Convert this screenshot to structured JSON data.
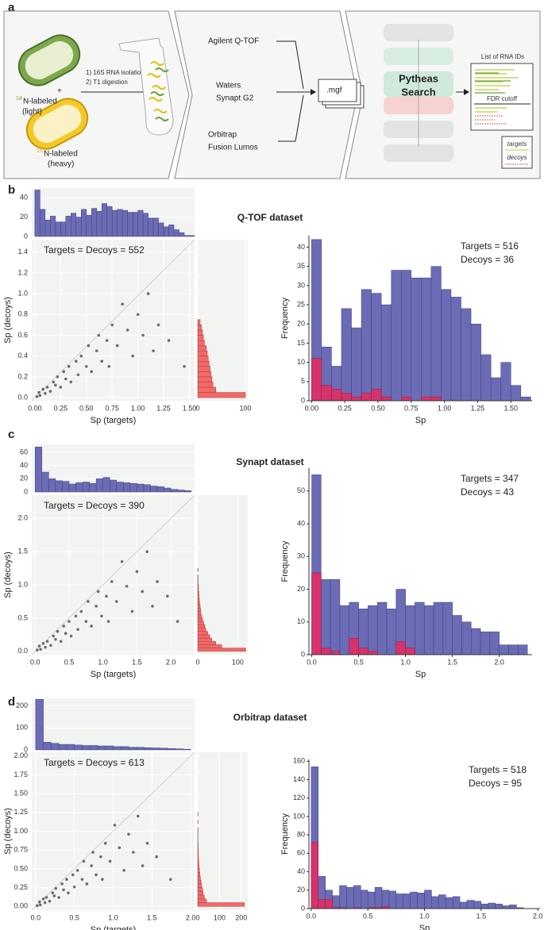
{
  "workflow": {
    "label": "a",
    "step1": "1) 16S RNA isolation",
    "step2": "2) T1 digestion",
    "plus": "+",
    "light_isotope": "14",
    "light_label": "N-labeled",
    "light_state": "(light)",
    "heavy_isotope": "15",
    "heavy_label": "N-labeled",
    "heavy_state": "(heavy)",
    "instruments": [
      "Agilent Q-TOF",
      "Waters",
      "Synapt G2",
      "Orbitrap",
      "Fusion Lumos"
    ],
    "file": ".mgf",
    "search": [
      "Pytheas",
      "Search"
    ],
    "output_title": "List of RNA IDs",
    "cutoff": "FDR cutoff",
    "legend": [
      "targets",
      "decoys"
    ]
  },
  "chart_data": [
    {
      "type": "histogram",
      "background": "#f2f4f2",
      "grid": true,
      "color": "#6b6cb5",
      "xlim": [
        -0.03,
        1.55
      ],
      "ylim": [
        0,
        50
      ],
      "yticks": [
        0,
        20,
        40
      ],
      "bins": [
        0,
        0.05,
        0.1,
        0.15,
        0.2,
        0.25,
        0.3,
        0.35,
        0.4,
        0.45,
        0.5,
        0.55,
        0.6,
        0.65,
        0.7,
        0.75,
        0.8,
        0.85,
        0.9,
        0.95,
        1,
        1.05,
        1.1,
        1.15,
        1.2,
        1.25,
        1.3,
        1.35,
        1.4,
        1.45,
        1.5,
        1.55
      ],
      "values": [
        48,
        28,
        17,
        21,
        15,
        15,
        21,
        24,
        20,
        28,
        22,
        29,
        26,
        34,
        31,
        27,
        28,
        27,
        25,
        25,
        27,
        24,
        19,
        19,
        14,
        10,
        12,
        7,
        4,
        1,
        1
      ]
    },
    {
      "type": "scatter",
      "background": "#f2f4f2",
      "grid": true,
      "color": "#555555",
      "annotation": "Targets = Decoys = 552",
      "x_label": "Sp (targets)",
      "y_label": "Sp (decoys)",
      "xlim": [
        -0.03,
        1.55
      ],
      "ylim": [
        -0.03,
        1.52
      ],
      "xticks": [
        {
          "value": 0,
          "label": "0.00"
        },
        0.25,
        {
          "value": 0.5,
          "label": "0.50"
        },
        0.75,
        {
          "value": 1,
          "label": "1.00"
        },
        1.25,
        {
          "value": 1.5,
          "label": "1.50"
        }
      ],
      "yticks": [
        {
          "value": 0,
          "label": "0.0"
        },
        0.2,
        0.4,
        0.6,
        0.8,
        {
          "value": 1,
          "label": "1.0"
        },
        1.2,
        1.4
      ],
      "x": [
        0.02,
        0.04,
        0.05,
        0.08,
        0.1,
        0.12,
        0.15,
        0.18,
        0.2,
        0.22,
        0.25,
        0.28,
        0.3,
        0.33,
        0.35,
        0.4,
        0.42,
        0.45,
        0.5,
        0.52,
        0.55,
        0.6,
        0.62,
        0.65,
        0.7,
        0.72,
        0.75,
        0.8,
        0.85,
        0.9,
        0.95,
        1.0,
        1.05,
        1.1,
        1.15,
        1.2,
        1.3,
        1.45
      ],
      "values": [
        0.01,
        0.05,
        0.02,
        0.08,
        0.04,
        0.1,
        0.06,
        0.15,
        0.12,
        0.2,
        0.1,
        0.25,
        0.18,
        0.3,
        0.15,
        0.35,
        0.22,
        0.4,
        0.3,
        0.5,
        0.25,
        0.45,
        0.6,
        0.35,
        0.55,
        0.3,
        0.7,
        0.5,
        0.9,
        0.65,
        0.4,
        0.8,
        0.6,
        1.0,
        0.45,
        0.7,
        0.55,
        0.3
      ]
    },
    {
      "type": "histogram",
      "orientation": "horizontal",
      "background": "#f2f4f2",
      "grid": true,
      "color": "#f06a6a",
      "xlim": [
        0,
        105
      ],
      "ylim": [
        -0.03,
        1.52
      ],
      "xticks": [
        0,
        100
      ],
      "bins": [
        0,
        0.05,
        0.1,
        0.15,
        0.2,
        0.25,
        0.3,
        0.35,
        0.4,
        0.45,
        0.5,
        0.55,
        0.6,
        0.65,
        0.7,
        0.75
      ],
      "values": [
        100,
        38,
        32,
        30,
        28,
        26,
        24,
        22,
        20,
        18,
        14,
        12,
        10,
        8,
        5
      ]
    },
    {
      "type": "histogram",
      "grid": false,
      "axis_lines": true,
      "panel_label": "b",
      "title": "Q-TOF dataset",
      "annotations": [
        "Targets = 516",
        "Decoys = 36"
      ],
      "x_label": "Sp",
      "y_label": "Frequency",
      "xlim": [
        -0.02,
        1.66
      ],
      "ylim": [
        0,
        43
      ],
      "xticks": [
        {
          "value": 0,
          "label": "0.00"
        },
        0.25,
        {
          "value": 0.5,
          "label": "0.50"
        },
        0.75,
        {
          "value": 1,
          "label": "1.00"
        },
        1.25,
        {
          "value": 1.5,
          "label": "1.50"
        }
      ],
      "yticks": [
        0,
        5,
        10,
        15,
        20,
        25,
        30,
        35,
        40
      ],
      "bins": [
        0,
        0.075,
        0.15,
        0.225,
        0.3,
        0.375,
        0.45,
        0.525,
        0.6,
        0.675,
        0.75,
        0.825,
        0.9,
        0.975,
        1.05,
        1.125,
        1.2,
        1.275,
        1.35,
        1.425,
        1.5,
        1.575,
        1.65
      ],
      "series": [
        {
          "color": "#6b6cb5",
          "values": [
            42,
            14,
            9,
            24,
            19,
            29,
            28,
            25,
            34,
            34,
            32,
            32,
            35,
            29,
            27,
            24,
            20,
            12,
            6,
            10,
            4,
            1
          ]
        },
        {
          "color": "#d6336c",
          "values": [
            11,
            4,
            3,
            2,
            1,
            2,
            3,
            1,
            0,
            1,
            0,
            1,
            1,
            0,
            0,
            0,
            0,
            0,
            0,
            0,
            0,
            0
          ]
        }
      ]
    },
    {
      "type": "histogram",
      "background": "#f2f4f2",
      "grid": true,
      "color": "#6b6cb5",
      "xlim": [
        -0.05,
        2.35
      ],
      "ylim": [
        0,
        72
      ],
      "yticks": [
        0,
        20,
        40,
        60
      ],
      "bins": [
        0,
        0.1,
        0.2,
        0.3,
        0.4,
        0.5,
        0.6,
        0.7,
        0.8,
        0.9,
        1,
        1.1,
        1.2,
        1.3,
        1.4,
        1.5,
        1.6,
        1.7,
        1.8,
        1.9,
        2,
        2.1,
        2.2,
        2.3
      ],
      "values": [
        68,
        30,
        20,
        17,
        16,
        12,
        14,
        15,
        13,
        20,
        22,
        18,
        15,
        14,
        13,
        12,
        11,
        9,
        8,
        6,
        4,
        3,
        2
      ]
    },
    {
      "type": "scatter",
      "background": "#f2f4f2",
      "grid": true,
      "color": "#555555",
      "annotation": "Targets = Decoys = 390",
      "x_label": "Sp (targets)",
      "y_label": "Sp (decoys)",
      "xlim": [
        -0.05,
        2.35
      ],
      "ylim": [
        -0.05,
        2.35
      ],
      "xticks": [
        {
          "value": 0,
          "label": "0.0"
        },
        0.5,
        {
          "value": 1,
          "label": "1.0"
        },
        1.5,
        {
          "value": 2,
          "label": "2.0"
        }
      ],
      "yticks": [
        {
          "value": 0,
          "label": "0.0"
        },
        0.5,
        {
          "value": 1,
          "label": "1.0"
        },
        1.5,
        {
          "value": 2,
          "label": "2.0"
        }
      ],
      "x": [
        0.03,
        0.06,
        0.08,
        0.12,
        0.15,
        0.18,
        0.23,
        0.27,
        0.3,
        0.33,
        0.38,
        0.42,
        0.45,
        0.5,
        0.53,
        0.6,
        0.63,
        0.68,
        0.75,
        0.78,
        0.83,
        0.9,
        0.93,
        0.98,
        1.05,
        1.08,
        1.13,
        1.2,
        1.28,
        1.35,
        1.43,
        1.5,
        1.58,
        1.65,
        1.73,
        1.8,
        1.95,
        2.1
      ],
      "values": [
        0.02,
        0.08,
        0.03,
        0.12,
        0.06,
        0.15,
        0.09,
        0.23,
        0.18,
        0.3,
        0.15,
        0.38,
        0.27,
        0.45,
        0.23,
        0.53,
        0.33,
        0.6,
        0.45,
        0.75,
        0.38,
        0.68,
        0.9,
        0.53,
        0.83,
        0.45,
        1.05,
        0.75,
        1.35,
        0.98,
        0.6,
        1.2,
        0.9,
        1.5,
        0.68,
        1.05,
        0.83,
        0.45
      ]
    },
    {
      "type": "histogram",
      "orientation": "horizontal",
      "background": "#f2f4f2",
      "grid": true,
      "color": "#f06a6a",
      "xlim": [
        0,
        125
      ],
      "ylim": [
        -0.05,
        2.35
      ],
      "xticks": [
        0,
        100
      ],
      "bins": [
        0,
        0.05,
        0.1,
        0.15,
        0.2,
        0.25,
        0.3,
        0.35,
        0.4,
        0.45,
        0.5,
        0.55,
        0.6,
        0.65,
        0.7,
        0.75,
        0.8,
        0.85,
        0.9,
        0.95,
        1,
        1.05,
        1.1,
        1.15,
        1.2,
        1.25,
        1.3
      ],
      "values": [
        120,
        60,
        45,
        35,
        30,
        25,
        20,
        18,
        15,
        12,
        10,
        8,
        7,
        6,
        5,
        4,
        3,
        3,
        2,
        2,
        1,
        1,
        1,
        0,
        1,
        0
      ]
    },
    {
      "type": "histogram",
      "grid": false,
      "axis_lines": true,
      "panel_label": "c",
      "title": "Synapt dataset",
      "annotations": [
        "Targets = 347",
        "Decoys = 43"
      ],
      "x_label": "Sp",
      "y_label": "Frequency",
      "xlim": [
        -0.03,
        2.35
      ],
      "ylim": [
        0,
        57
      ],
      "xticks": [
        {
          "value": 0,
          "label": "0.0"
        },
        0.5,
        {
          "value": 1,
          "label": "1.0"
        },
        1.5,
        {
          "value": 2,
          "label": "2.0"
        }
      ],
      "yticks": [
        0,
        10,
        20,
        30,
        40,
        50
      ],
      "bins": [
        0,
        0.1,
        0.2,
        0.3,
        0.4,
        0.5,
        0.6,
        0.7,
        0.8,
        0.9,
        1,
        1.1,
        1.2,
        1.3,
        1.4,
        1.5,
        1.6,
        1.7,
        1.8,
        1.9,
        2,
        2.1,
        2.2,
        2.3
      ],
      "series": [
        {
          "color": "#6b6cb5",
          "values": [
            55,
            23,
            23,
            15,
            16,
            14,
            15,
            16,
            14,
            20,
            15,
            16,
            15,
            16,
            16,
            12,
            10,
            8,
            7,
            7,
            3,
            3,
            3
          ]
        },
        {
          "color": "#d6336c",
          "values": [
            25,
            2,
            1,
            0,
            5,
            2,
            1,
            0,
            0,
            4,
            2,
            0,
            0,
            0,
            0,
            0,
            0,
            0,
            0,
            0,
            0,
            0,
            0
          ]
        }
      ]
    },
    {
      "type": "histogram",
      "background": "#f2f4f2",
      "grid": true,
      "color": "#6b6cb5",
      "xlim": [
        -0.05,
        2.05
      ],
      "ylim": [
        0,
        235
      ],
      "yticks": [
        0,
        100,
        200
      ],
      "bins": [
        0,
        0.1,
        0.2,
        0.3,
        0.4,
        0.5,
        0.6,
        0.7,
        0.8,
        0.9,
        1,
        1.1,
        1.2,
        1.3,
        1.4,
        1.5,
        1.6,
        1.7,
        1.8,
        1.9,
        2
      ],
      "values": [
        230,
        35,
        30,
        25,
        25,
        22,
        20,
        20,
        18,
        18,
        15,
        15,
        12,
        12,
        10,
        9,
        8,
        6,
        5,
        3
      ]
    },
    {
      "type": "scatter",
      "background": "#f2f4f2",
      "grid": true,
      "color": "#555555",
      "annotation": "Targets = Decoys = 613",
      "x_label": "Sp (targets)",
      "y_label": "Sp (decoys)",
      "xlim": [
        -0.05,
        2.05
      ],
      "ylim": [
        -0.05,
        2.05
      ],
      "xticks": [
        {
          "value": 0,
          "label": "0.0"
        },
        0.5,
        {
          "value": 1,
          "label": "1.0"
        },
        1.5,
        {
          "value": 2,
          "label": "2.0"
        }
      ],
      "yticks": [
        {
          "value": 0,
          "label": "0.00"
        },
        0.25,
        {
          "value": 0.5,
          "label": "0.50"
        },
        0.75,
        {
          "value": 1,
          "label": "1.00"
        },
        1.25,
        {
          "value": 1.5,
          "label": "1.50"
        },
        1.75,
        {
          "value": 2,
          "label": "2.00"
        }
      ],
      "x": [
        0.02,
        0.05,
        0.06,
        0.1,
        0.12,
        0.14,
        0.18,
        0.22,
        0.24,
        0.26,
        0.3,
        0.34,
        0.36,
        0.4,
        0.42,
        0.48,
        0.5,
        0.54,
        0.6,
        0.62,
        0.66,
        0.72,
        0.74,
        0.78,
        0.84,
        0.86,
        0.9,
        0.96,
        1.02,
        1.08,
        1.14,
        1.2,
        1.26,
        1.32,
        1.38,
        1.44,
        1.56,
        1.74
      ],
      "values": [
        0.01,
        0.06,
        0.02,
        0.1,
        0.05,
        0.12,
        0.07,
        0.18,
        0.14,
        0.24,
        0.12,
        0.3,
        0.22,
        0.36,
        0.18,
        0.42,
        0.26,
        0.48,
        0.36,
        0.6,
        0.3,
        0.54,
        0.72,
        0.42,
        0.66,
        0.36,
        0.84,
        0.6,
        1.08,
        0.78,
        0.48,
        0.96,
        0.72,
        1.2,
        0.54,
        0.84,
        0.66,
        0.36
      ]
    },
    {
      "type": "histogram",
      "orientation": "horizontal",
      "background": "#f2f4f2",
      "grid": true,
      "color": "#f06a6a",
      "xlim": [
        0,
        230
      ],
      "ylim": [
        -0.05,
        2.05
      ],
      "xticks": [
        0,
        100,
        200
      ],
      "bins": [
        0,
        0.05,
        0.1,
        0.15,
        0.2,
        0.25,
        0.3,
        0.35,
        0.4,
        0.45,
        0.5,
        0.55,
        0.6,
        0.65,
        0.7,
        0.75,
        0.8,
        0.85,
        0.9,
        0.95,
        1,
        1.05,
        1.1,
        1.15,
        1.2,
        1.25
      ],
      "values": [
        215,
        40,
        30,
        25,
        22,
        18,
        15,
        12,
        10,
        8,
        6,
        5,
        4,
        3,
        3,
        2,
        2,
        1,
        1,
        1,
        1,
        0,
        1,
        0,
        1
      ]
    },
    {
      "type": "histogram",
      "grid": false,
      "axis_lines": true,
      "panel_label": "d",
      "title": "Orbitrap dataset",
      "annotations": [
        "Targets = 518",
        "Decoys = 95"
      ],
      "x_label": "Sp",
      "y_label": "Frequency",
      "xlim": [
        -0.02,
        2.02
      ],
      "ylim": [
        0,
        162
      ],
      "xticks": [
        {
          "value": 0,
          "label": "0.0"
        },
        0.5,
        {
          "value": 1,
          "label": "1.0"
        },
        1.5,
        {
          "value": 2,
          "label": "2.0"
        }
      ],
      "yticks": [
        0,
        20,
        40,
        60,
        80,
        100,
        120,
        140,
        160
      ],
      "bins": [
        0,
        0.0625,
        0.125,
        0.1875,
        0.25,
        0.3125,
        0.375,
        0.4375,
        0.5,
        0.5625,
        0.625,
        0.6875,
        0.75,
        0.8125,
        0.875,
        0.9375,
        1,
        1.0625,
        1.125,
        1.1875,
        1.25,
        1.3125,
        1.375,
        1.4375,
        1.5,
        1.5625,
        1.625,
        1.6875,
        1.75,
        1.8125,
        1.875
      ],
      "series": [
        {
          "color": "#6b6cb5",
          "values": [
            154,
            35,
            20,
            14,
            25,
            23,
            25,
            20,
            18,
            23,
            20,
            19,
            16,
            16,
            18,
            17,
            20,
            13,
            15,
            12,
            13,
            7,
            9,
            8,
            5,
            6,
            5,
            3,
            4,
            1
          ]
        },
        {
          "color": "#d6336c",
          "values": [
            72,
            10,
            10,
            1,
            1,
            0,
            1,
            0,
            1,
            1,
            2,
            0,
            0,
            0,
            0,
            0,
            0,
            0,
            0,
            0,
            0,
            0,
            0,
            0,
            0,
            0,
            0,
            0,
            0,
            0
          ]
        }
      ]
    }
  ]
}
